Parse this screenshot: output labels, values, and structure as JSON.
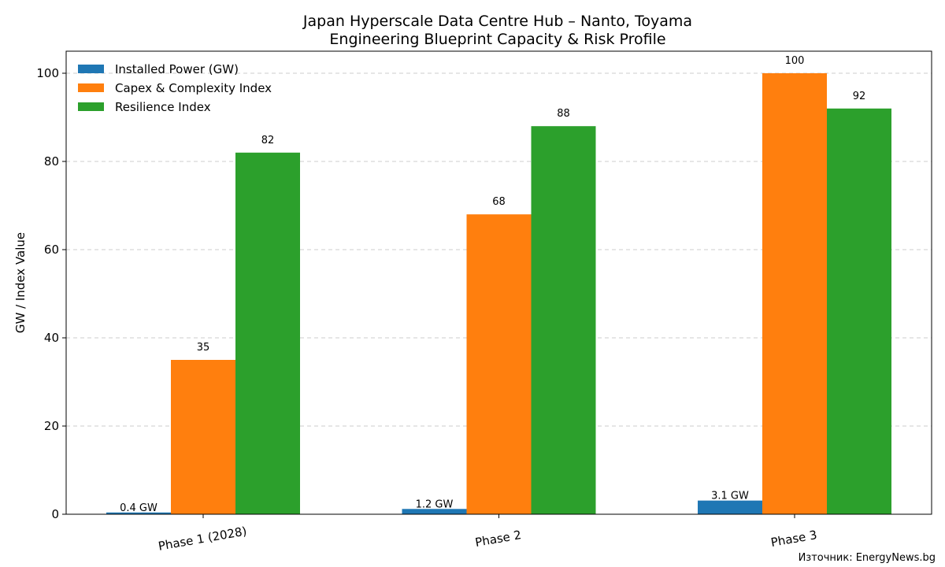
{
  "chart_data": {
    "type": "bar",
    "title": "Japan Hyperscale Data Centre Hub – Nanto, Toyama",
    "subtitle": "Engineering Blueprint Capacity & Risk Profile",
    "xlabel": "",
    "ylabel": "GW / Index Value",
    "ylim": [
      0,
      105
    ],
    "yticks": [
      "0",
      "20",
      "40",
      "60",
      "80",
      "100"
    ],
    "ytick_values": [
      0,
      20,
      40,
      60,
      80,
      100
    ],
    "grid": "horizontal dashed",
    "legend_position": "top-left",
    "categories": [
      "Phase 1 (2028)",
      "Phase 2",
      "Phase 3"
    ],
    "series": [
      {
        "name": "Installed Power (GW)",
        "color": "#1f77b4",
        "values": [
          0.4,
          1.2,
          3.1
        ],
        "labels": [
          "0.4 GW",
          "1.2 GW",
          "3.1 GW"
        ]
      },
      {
        "name": "Capex & Complexity Index",
        "color": "#ff7f0e",
        "values": [
          35,
          68,
          100
        ],
        "labels": [
          "35",
          "68",
          "100"
        ]
      },
      {
        "name": "Resilience Index",
        "color": "#2ca02c",
        "values": [
          82,
          88,
          92
        ],
        "labels": [
          "82",
          "88",
          "92"
        ]
      }
    ],
    "source": "Източник: EnergyNews.bg"
  }
}
